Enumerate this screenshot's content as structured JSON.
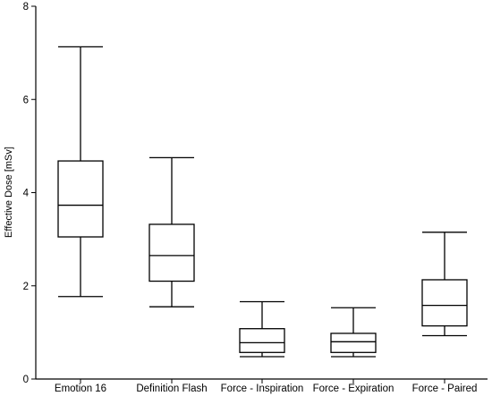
{
  "chart_data": {
    "type": "boxplot",
    "title": "",
    "xlabel": "",
    "ylabel": "Effective Dose [mSv]",
    "ylim": [
      0,
      8
    ],
    "yticks": [
      0,
      2,
      4,
      6,
      8
    ],
    "grid": false,
    "categories": [
      "Emotion 16",
      "Definition Flash",
      "Force - Inspiration",
      "Force - Expiration",
      "Force - Paired"
    ],
    "boxes": [
      {
        "min": 1.77,
        "q1": 3.05,
        "median": 3.73,
        "q3": 4.68,
        "max": 7.13
      },
      {
        "min": 1.55,
        "q1": 2.1,
        "median": 2.65,
        "q3": 3.32,
        "max": 4.75
      },
      {
        "min": 0.48,
        "q1": 0.57,
        "median": 0.78,
        "q3": 1.08,
        "max": 1.66
      },
      {
        "min": 0.48,
        "q1": 0.57,
        "median": 0.8,
        "q3": 0.98,
        "max": 1.53
      },
      {
        "min": 0.93,
        "q1": 1.14,
        "median": 1.58,
        "q3": 2.13,
        "max": 3.15
      }
    ]
  }
}
